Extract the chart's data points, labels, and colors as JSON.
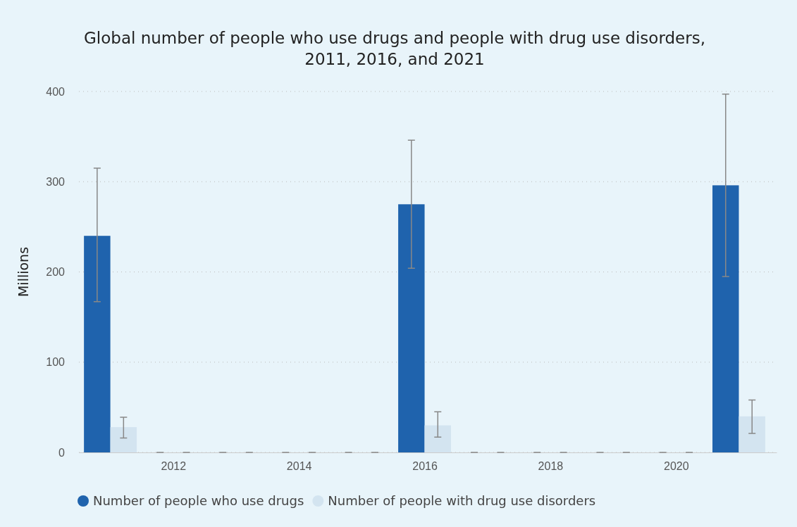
{
  "chart_data": {
    "type": "bar",
    "title": "Global number of people who use drugs and people with drug use disorders, 2011, 2016, and 2021",
    "ylabel": "Millions",
    "x": [
      2011,
      2012,
      2013,
      2014,
      2015,
      2016,
      2017,
      2018,
      2019,
      2020,
      2021
    ],
    "series": [
      {
        "name": "Number of people who use drugs",
        "color": "#1f63ad",
        "values": [
          240,
          0,
          0,
          0,
          0,
          275,
          0,
          0,
          0,
          0,
          296
        ],
        "errors": [
          [
            167,
            315
          ],
          0,
          0,
          0,
          0,
          [
            204,
            346
          ],
          0,
          0,
          0,
          0,
          [
            195,
            397
          ]
        ]
      },
      {
        "name": "Number of people with drug use disorders",
        "color": "#d3e4f0",
        "values": [
          28,
          0,
          0,
          0,
          0,
          30,
          0,
          0,
          0,
          0,
          40
        ],
        "errors": [
          [
            16,
            39
          ],
          0,
          0,
          0,
          0,
          [
            17,
            45
          ],
          0,
          0,
          0,
          0,
          [
            21,
            58
          ]
        ]
      }
    ],
    "xlim": [
      2010.5,
      2021.6
    ],
    "xticks": [
      2012,
      2014,
      2016,
      2018,
      2020
    ],
    "ylim": [
      0,
      400
    ],
    "yticks": [
      0,
      100,
      200,
      300,
      400
    ],
    "grid": "y",
    "legend": "bottom"
  }
}
